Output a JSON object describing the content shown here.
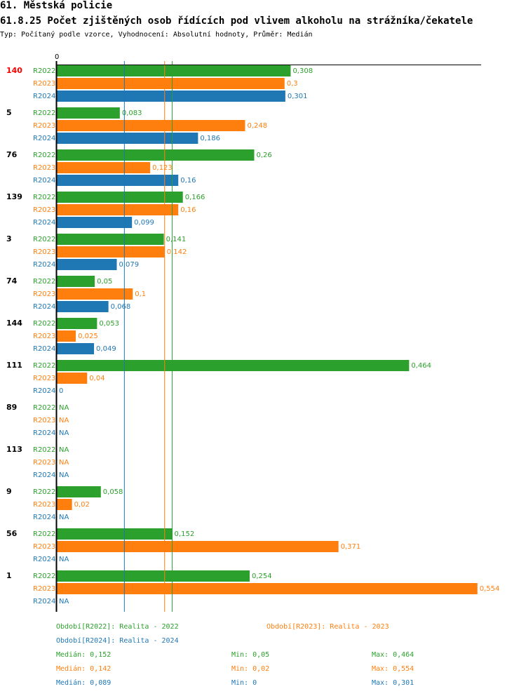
{
  "title": "61. Městská policie",
  "subtitle": "61.8.25 Počet zjištěných osob řídících pod vlivem alkoholu na strážníka/čekatele",
  "meta": "Typ: Počítaný podle vzorce, Vyhodnocení: Absolutní hodnoty, Průměr: Medián",
  "colors": {
    "R2022": "#2ca02c",
    "R2023": "#ff7f0e",
    "R2024": "#1f77b4",
    "highlight": "#ff0000"
  },
  "chart_data": {
    "type": "bar",
    "orientation": "horizontal",
    "x_axis_start_label": "0",
    "xlim": [
      0,
      0.554
    ],
    "series_names": [
      "R2022",
      "R2023",
      "R2024"
    ],
    "groups": [
      {
        "id": "140",
        "highlight": true,
        "values": [
          0.308,
          0.3,
          0.301
        ],
        "labels": [
          "0,308",
          "0,3",
          "0,301"
        ]
      },
      {
        "id": "5",
        "values": [
          0.083,
          0.248,
          0.186
        ],
        "labels": [
          "0,083",
          "0,248",
          "0,186"
        ]
      },
      {
        "id": "76",
        "values": [
          0.26,
          0.123,
          0.16
        ],
        "labels": [
          "0,26",
          "0,123",
          "0,16"
        ]
      },
      {
        "id": "139",
        "values": [
          0.166,
          0.16,
          0.099
        ],
        "labels": [
          "0,166",
          "0,16",
          "0,099"
        ]
      },
      {
        "id": "3",
        "values": [
          0.141,
          0.142,
          0.079
        ],
        "labels": [
          "0,141",
          "0,142",
          "0,079"
        ]
      },
      {
        "id": "74",
        "values": [
          0.05,
          0.1,
          0.068
        ],
        "labels": [
          "0,05",
          "0,1",
          "0,068"
        ]
      },
      {
        "id": "144",
        "values": [
          0.053,
          0.025,
          0.049
        ],
        "labels": [
          "0,053",
          "0,025",
          "0,049"
        ]
      },
      {
        "id": "111",
        "values": [
          0.464,
          0.04,
          0
        ],
        "labels": [
          "0,464",
          "0,04",
          "0"
        ]
      },
      {
        "id": "89",
        "values": [
          null,
          null,
          null
        ],
        "labels": [
          "NA",
          "NA",
          "NA"
        ]
      },
      {
        "id": "113",
        "values": [
          null,
          null,
          null
        ],
        "labels": [
          "NA",
          "NA",
          "NA"
        ]
      },
      {
        "id": "9",
        "values": [
          0.058,
          0.02,
          null
        ],
        "labels": [
          "0,058",
          "0,02",
          "NA"
        ]
      },
      {
        "id": "56",
        "values": [
          0.152,
          0.371,
          null
        ],
        "labels": [
          "0,152",
          "0,371",
          "NA"
        ]
      },
      {
        "id": "1",
        "values": [
          0.254,
          0.554,
          null
        ],
        "labels": [
          "0,254",
          "0,554",
          "NA"
        ]
      }
    ],
    "median_lines": [
      {
        "series": "R2022",
        "value": 0.152
      },
      {
        "series": "R2023",
        "value": 0.142
      },
      {
        "series": "R2024",
        "value": 0.089
      }
    ]
  },
  "legend": {
    "periods": [
      {
        "series": "R2022",
        "text": "Období[R2022]: Realita - 2022"
      },
      {
        "series": "R2023",
        "text": "Období[R2023]: Realita - 2023"
      },
      {
        "series": "R2024",
        "text": "Období[R2024]: Realita - 2024"
      }
    ],
    "stats": [
      {
        "series": "R2022",
        "median": "Medián: 0,152",
        "min": "Min: 0,05",
        "max": "Max: 0,464"
      },
      {
        "series": "R2023",
        "median": "Medián: 0,142",
        "min": "Min: 0,02",
        "max": "Max: 0,554"
      },
      {
        "series": "R2024",
        "median": "Medián: 0,089",
        "min": "Min: 0",
        "max": "Max: 0,301"
      }
    ]
  }
}
